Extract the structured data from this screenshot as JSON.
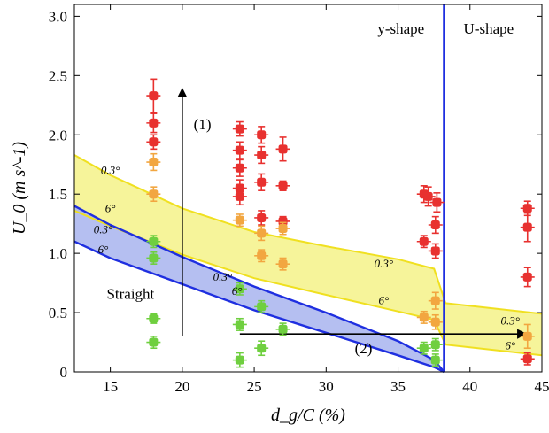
{
  "chart_data": {
    "type": "scatter",
    "xlabel": "d_g/C (%)",
    "ylabel": "U_0 (m s^-1)",
    "xlim": [
      12.5,
      45
    ],
    "ylim": [
      0,
      3.1
    ],
    "xticks": [
      "15",
      "20",
      "25",
      "30",
      "35",
      "40",
      "45"
    ],
    "yticks": [
      "0",
      "0.5",
      "1.0",
      "1.5",
      "2.0",
      "2.5",
      "3.0"
    ],
    "grid": false,
    "colors": {
      "red": "#e8312f",
      "orange": "#f2a640",
      "green": "#6fcf3f",
      "blue_line": "#1f2fe0",
      "blue_fill": "#a8b4ee",
      "yellow_line": "#f0e020",
      "yellow_fill": "#f6f49a"
    },
    "regions": [
      {
        "label": "y-shape",
        "x": 35.2,
        "y": 2.9
      },
      {
        "label": "U-shape",
        "x": 41.3,
        "y": 2.9
      },
      {
        "label": "Straight",
        "x": 16.4,
        "y": 0.66
      }
    ],
    "annotations": [
      {
        "label": "(1)",
        "x": 21.4,
        "y": 2.09
      },
      {
        "label": "(2)",
        "x": 32.6,
        "y": 0.2
      }
    ],
    "band_labels": [
      {
        "label": "0.3°",
        "x": 15.0,
        "y": 1.7
      },
      {
        "label": "6°",
        "x": 15.0,
        "y": 1.38
      },
      {
        "label": "0.3°",
        "x": 14.5,
        "y": 1.2
      },
      {
        "label": "6°",
        "x": 14.5,
        "y": 1.03
      },
      {
        "label": "0.3°",
        "x": 22.8,
        "y": 0.8
      },
      {
        "label": "6°",
        "x": 23.8,
        "y": 0.68
      },
      {
        "label": "0.3°",
        "x": 34.0,
        "y": 0.91
      },
      {
        "label": "6°",
        "x": 34.0,
        "y": 0.6
      },
      {
        "label": "0.3°",
        "x": 42.8,
        "y": 0.43
      },
      {
        "label": "6°",
        "x": 42.8,
        "y": 0.22
      }
    ],
    "transition_x": 38.2,
    "boundaries": [
      {
        "name": "straight_upper",
        "color": "blue",
        "x": [
          12.5,
          15,
          20,
          25,
          30,
          35,
          37.5,
          38.2
        ],
        "y": [
          1.4,
          1.24,
          0.97,
          0.72,
          0.5,
          0.26,
          0.1,
          0.0
        ]
      },
      {
        "name": "straight_lower",
        "color": "blue",
        "x": [
          12.5,
          15,
          20,
          25,
          30,
          35,
          37.5,
          38.2
        ],
        "y": [
          1.1,
          0.96,
          0.74,
          0.52,
          0.33,
          0.14,
          0.04,
          0.0
        ]
      },
      {
        "name": "y_upper",
        "color": "yellow",
        "x": [
          12.5,
          15,
          20,
          25,
          30,
          35,
          37.5,
          38.3,
          45
        ],
        "y": [
          1.83,
          1.66,
          1.38,
          1.18,
          1.06,
          0.95,
          0.87,
          0.58,
          0.49
        ]
      },
      {
        "name": "y_lower",
        "color": "yellow",
        "x": [
          12.5,
          15,
          20,
          25,
          30,
          35,
          37.5,
          38.3,
          45
        ],
        "y": [
          1.36,
          1.23,
          0.99,
          0.79,
          0.65,
          0.51,
          0.44,
          0.23,
          0.14
        ]
      }
    ],
    "arrows": [
      {
        "x1": 20,
        "y1": 0.3,
        "x2": 20,
        "y2": 2.39
      },
      {
        "x1": 24,
        "y1": 0.32,
        "x2": 43.9,
        "y2": 0.32
      }
    ],
    "series": [
      {
        "color": "red",
        "points": [
          {
            "x": 18,
            "y": 2.33,
            "ey": 0.14
          },
          {
            "x": 18,
            "y": 2.1,
            "ey": 0.08
          },
          {
            "x": 18,
            "y": 1.94,
            "ey": 0.06
          },
          {
            "x": 24,
            "y": 2.05,
            "ey": 0.06
          },
          {
            "x": 24,
            "y": 1.87,
            "ey": 0.07
          },
          {
            "x": 24,
            "y": 1.72,
            "ey": 0.07
          },
          {
            "x": 24,
            "y": 1.55,
            "ey": 0.07
          },
          {
            "x": 24,
            "y": 1.48,
            "ey": 0.07
          },
          {
            "x": 25.5,
            "y": 2.0,
            "ey": 0.07
          },
          {
            "x": 25.5,
            "y": 1.83,
            "ey": 0.07
          },
          {
            "x": 25.5,
            "y": 1.6,
            "ey": 0.07
          },
          {
            "x": 25.5,
            "y": 1.3,
            "ey": 0.06
          },
          {
            "x": 27,
            "y": 1.88,
            "ey": 0.1
          },
          {
            "x": 27,
            "y": 1.57,
            "ey": 0.04
          },
          {
            "x": 27,
            "y": 1.27,
            "ey": 0.04
          },
          {
            "x": 36.8,
            "y": 1.5,
            "ey": 0.07
          },
          {
            "x": 37.1,
            "y": 1.48,
            "ey": 0.08
          },
          {
            "x": 36.8,
            "y": 1.1,
            "ey": 0.05
          },
          {
            "x": 37.7,
            "y": 1.43,
            "ey": 0.08
          },
          {
            "x": 37.6,
            "y": 1.24,
            "ey": 0.07
          },
          {
            "x": 37.6,
            "y": 1.02,
            "ey": 0.06
          },
          {
            "x": 44,
            "y": 1.38,
            "ey": 0.06
          },
          {
            "x": 44,
            "y": 1.22,
            "ey": 0.12
          },
          {
            "x": 44,
            "y": 0.8,
            "ey": 0.08
          },
          {
            "x": 44,
            "y": 0.11,
            "ey": 0.05
          }
        ]
      },
      {
        "color": "orange",
        "points": [
          {
            "x": 18,
            "y": 1.77,
            "ey": 0.07
          },
          {
            "x": 18,
            "y": 1.5,
            "ey": 0.06
          },
          {
            "x": 24,
            "y": 1.28,
            "ey": 0.05
          },
          {
            "x": 25.5,
            "y": 1.17,
            "ey": 0.06
          },
          {
            "x": 25.5,
            "y": 0.98,
            "ey": 0.05
          },
          {
            "x": 27,
            "y": 1.21,
            "ey": 0.05
          },
          {
            "x": 27,
            "y": 0.91,
            "ey": 0.05
          },
          {
            "x": 37.6,
            "y": 0.6,
            "ey": 0.07
          },
          {
            "x": 37.6,
            "y": 0.42,
            "ey": 0.06
          },
          {
            "x": 36.8,
            "y": 0.46,
            "ey": 0.05
          },
          {
            "x": 44,
            "y": 0.3,
            "ey": 0.1
          }
        ]
      },
      {
        "color": "green",
        "points": [
          {
            "x": 18,
            "y": 1.1,
            "ey": 0.05
          },
          {
            "x": 18,
            "y": 0.96,
            "ey": 0.05
          },
          {
            "x": 18,
            "y": 0.45,
            "ey": 0.04
          },
          {
            "x": 18,
            "y": 0.25,
            "ey": 0.05
          },
          {
            "x": 24,
            "y": 0.7,
            "ey": 0.05
          },
          {
            "x": 24,
            "y": 0.4,
            "ey": 0.05
          },
          {
            "x": 24,
            "y": 0.1,
            "ey": 0.06
          },
          {
            "x": 25.5,
            "y": 0.55,
            "ey": 0.05
          },
          {
            "x": 25.5,
            "y": 0.2,
            "ey": 0.06
          },
          {
            "x": 27,
            "y": 0.36,
            "ey": 0.05
          },
          {
            "x": 36.8,
            "y": 0.2,
            "ey": 0.05
          },
          {
            "x": 37.6,
            "y": 0.23,
            "ey": 0.05
          },
          {
            "x": 37.6,
            "y": 0.1,
            "ey": 0.05
          }
        ]
      }
    ]
  }
}
